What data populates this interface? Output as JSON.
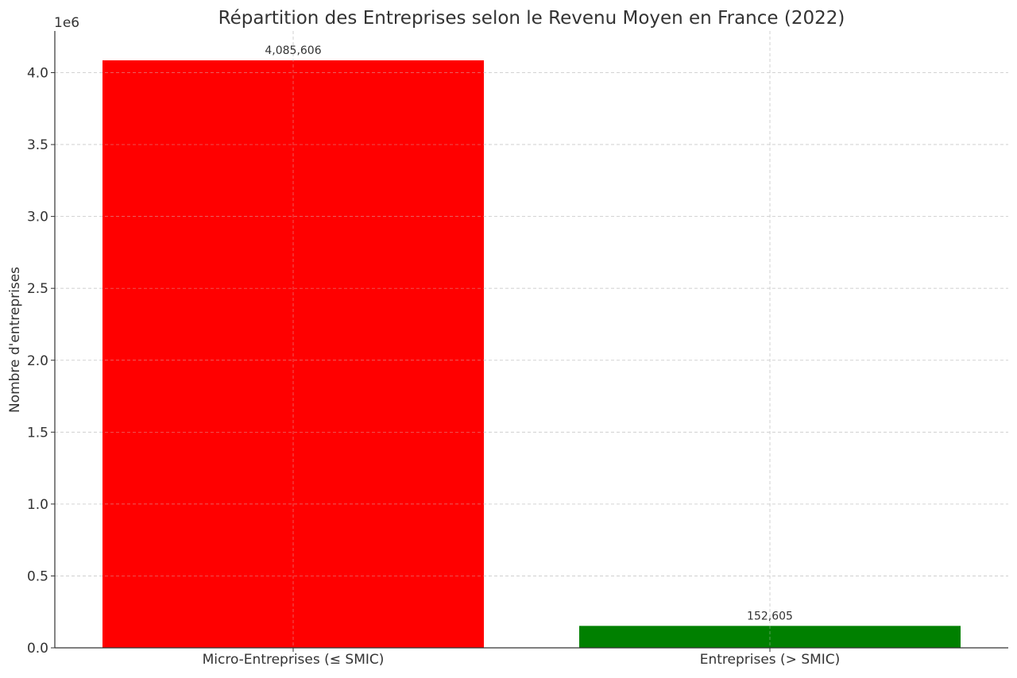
{
  "chart_data": {
    "type": "bar",
    "title": "Répartition des Entreprises selon le Revenu Moyen en France (2022)",
    "xlabel": "",
    "ylabel": "Nombre d'entreprises",
    "y_offset_label": "1e6",
    "categories": [
      "Micro-Entreprises (≤ SMIC)",
      "Entreprises (> SMIC)"
    ],
    "values": [
      4085606,
      152605
    ],
    "value_labels": [
      "4,085,606",
      "152,605"
    ],
    "colors": [
      "#ff0000",
      "#008000"
    ],
    "ylim": [
      0,
      4289886
    ],
    "yticks": [
      0,
      500000,
      1000000,
      1500000,
      2000000,
      2500000,
      3000000,
      3500000,
      4000000
    ],
    "ytick_labels": [
      "0.0",
      "0.5",
      "1.0",
      "1.5",
      "2.0",
      "2.5",
      "3.0",
      "3.5",
      "4.0"
    ],
    "grid": true
  }
}
